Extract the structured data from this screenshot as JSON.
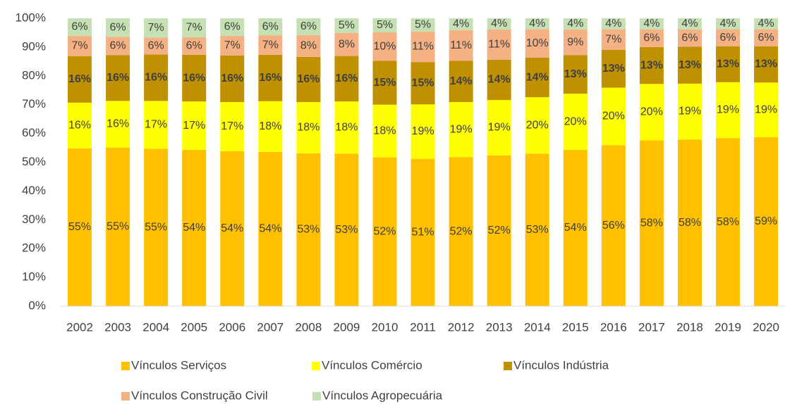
{
  "chart_data": {
    "type": "stacked_bar",
    "categories": [
      "2002",
      "2003",
      "2004",
      "2005",
      "2006",
      "2007",
      "2008",
      "2009",
      "2010",
      "2011",
      "2012",
      "2013",
      "2014",
      "2015",
      "2016",
      "2017",
      "2018",
      "2019",
      "2020"
    ],
    "series": [
      {
        "name": "Vínculos Serviços",
        "color": "#ffc000",
        "values": [
          54.8,
          55.1,
          54.7,
          54.3,
          53.8,
          53.6,
          53.1,
          53.0,
          51.7,
          51.2,
          51.8,
          52.4,
          53.0,
          54.3,
          55.9,
          57.6,
          57.9,
          58.4,
          58.7
        ],
        "value_labels": [
          "55%",
          "55%",
          "55%",
          "54%",
          "54%",
          "54%",
          "53%",
          "53%",
          "52%",
          "51%",
          "52%",
          "52%",
          "53%",
          "54%",
          "56%",
          "58%",
          "58%",
          "58%",
          "59%"
        ]
      },
      {
        "name": "Vínculos Comércio",
        "color": "#ffff00",
        "values": [
          15.9,
          16.2,
          16.6,
          16.8,
          17.1,
          17.6,
          17.8,
          18.1,
          18.3,
          18.9,
          19.1,
          19.2,
          19.6,
          19.5,
          20.0,
          19.6,
          19.4,
          19.4,
          19.0
        ],
        "value_labels": [
          "16%",
          "16%",
          "17%",
          "17%",
          "17%",
          "18%",
          "18%",
          "18%",
          "18%",
          "19%",
          "19%",
          "19%",
          "20%",
          "20%",
          "20%",
          "20%",
          "19%",
          "19%",
          "19%"
        ]
      },
      {
        "name": "Vínculos Indústria",
        "color": "#bf9000",
        "values": [
          16.1,
          15.9,
          16.1,
          16.2,
          16.2,
          16.1,
          15.7,
          15.8,
          15.2,
          14.7,
          14.3,
          14.0,
          13.7,
          13.4,
          13.1,
          12.8,
          12.8,
          12.5,
          12.6
        ],
        "value_labels": [
          "16%",
          "16%",
          "16%",
          "16%",
          "16%",
          "16%",
          "16%",
          "16%",
          "15%",
          "15%",
          "14%",
          "14%",
          "14%",
          "13%",
          "13%",
          "13%",
          "13%",
          "13%",
          "13%"
        ]
      },
      {
        "name": "Vínculos Construção Civil",
        "color": "#f4b183",
        "values": [
          7.1,
          6.4,
          5.9,
          6.1,
          6.8,
          6.8,
          7.6,
          8.0,
          10.0,
          10.6,
          10.7,
          10.5,
          9.9,
          8.9,
          7.2,
          6.1,
          6.0,
          5.9,
          5.9
        ],
        "value_labels": [
          "7%",
          "6%",
          "6%",
          "6%",
          "7%",
          "7%",
          "8%",
          "8%",
          "10%",
          "11%",
          "11%",
          "11%",
          "10%",
          "9%",
          "7%",
          "6%",
          "6%",
          "6%",
          "6%"
        ]
      },
      {
        "name": "Vínculos Agropecuária",
        "color": "#c5e0b3",
        "values": [
          6.1,
          6.4,
          6.7,
          6.6,
          6.1,
          5.9,
          5.8,
          5.1,
          4.8,
          4.6,
          4.1,
          3.9,
          3.8,
          3.9,
          3.8,
          3.9,
          3.9,
          3.8,
          3.8
        ],
        "value_labels": [
          "6%",
          "6%",
          "7%",
          "7%",
          "6%",
          "6%",
          "6%",
          "5%",
          "5%",
          "5%",
          "4%",
          "4%",
          "4%",
          "4%",
          "4%",
          "4%",
          "4%",
          "4%",
          "4%"
        ]
      }
    ],
    "ylim": [
      0,
      100
    ],
    "yticks": [
      {
        "value": 0,
        "label": "0%"
      },
      {
        "value": 10,
        "label": "10%"
      },
      {
        "value": 20,
        "label": "20%"
      },
      {
        "value": 30,
        "label": "30%"
      },
      {
        "value": 40,
        "label": "40%"
      },
      {
        "value": 50,
        "label": "50%"
      },
      {
        "value": 60,
        "label": "60%"
      },
      {
        "value": 70,
        "label": "70%"
      },
      {
        "value": 80,
        "label": "80%"
      },
      {
        "value": 90,
        "label": "90%"
      },
      {
        "value": 100,
        "label": "100%"
      }
    ],
    "grid": false,
    "legend": "bottom"
  }
}
